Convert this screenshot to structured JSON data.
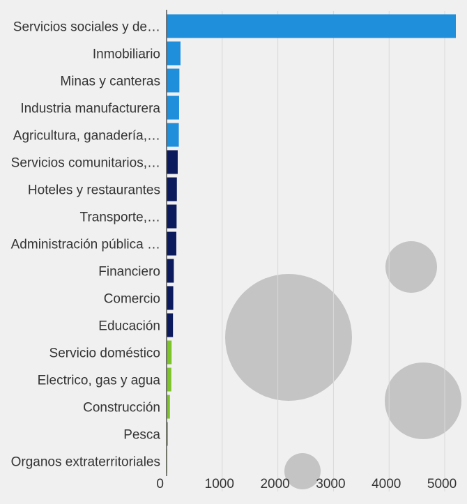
{
  "chart_data": {
    "type": "bar",
    "orientation": "horizontal",
    "categories": [
      "Servicios sociales y de…",
      "Inmobiliario",
      "Minas y canteras",
      "Industria manufacturera",
      "Agricultura, ganadería,…",
      "Servicios comunitarios,…",
      "Hoteles y restaurantes",
      "Transporte,…",
      "Administración pública …",
      "Financiero",
      "Comercio",
      "Educación",
      "Servicio doméstico",
      "Electrico, gas y agua",
      "Construcción",
      "Pesca",
      "Organos extraterritoriales"
    ],
    "values": [
      5200,
      250,
      230,
      225,
      220,
      200,
      185,
      180,
      175,
      130,
      120,
      115,
      90,
      85,
      60,
      25,
      5
    ],
    "bar_colors": [
      "#1f8fdc",
      "#1f8fdc",
      "#1f8fdc",
      "#1f8fdc",
      "#1f8fdc",
      "#0b1a5c",
      "#0b1a5c",
      "#0b1a5c",
      "#0b1a5c",
      "#0b1a5c",
      "#0b1a5c",
      "#0b1a5c",
      "#7dc42b",
      "#7dc42b",
      "#7dc42b",
      "#7dc42b",
      "#7dc42b"
    ],
    "xlim": [
      0,
      5200
    ],
    "xticks": [
      0,
      1000,
      2000,
      3000,
      4000,
      5000
    ],
    "xtick_labels": [
      "0",
      "1000",
      "2000",
      "3000",
      "4000",
      "5000"
    ],
    "grid": true,
    "bubble_color": "#bfbfbf"
  }
}
